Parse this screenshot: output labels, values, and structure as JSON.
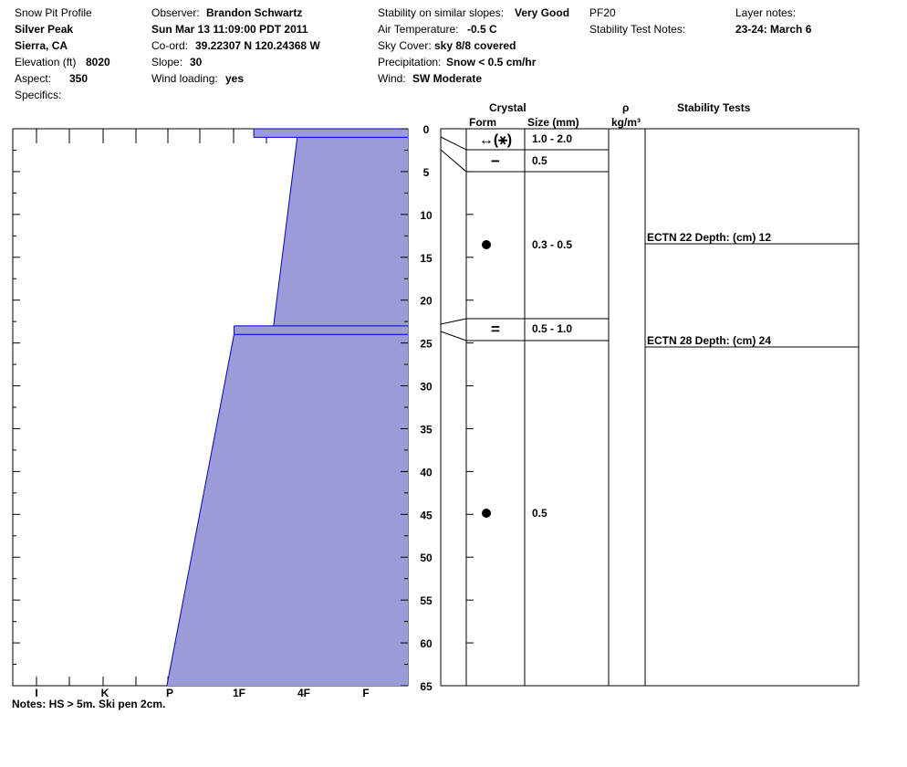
{
  "header": {
    "title": "Snow Pit Profile",
    "location": "Silver Peak",
    "region": "Sierra, CA",
    "elevation_label": "Elevation (ft)",
    "elevation": "8020",
    "aspect_label": "Aspect:",
    "aspect": "350",
    "specifics_label": "Specifics:",
    "observer_label": "Observer:",
    "observer": "Brandon Schwartz",
    "datetime": "Sun Mar 13 11:09:00 PDT 2011",
    "coord_label": "Co-ord:",
    "coord": "39.22307 N 120.24368 W",
    "slope_label": "Slope:",
    "slope": "30",
    "wind_loading_label": "Wind loading:",
    "wind_loading": "yes",
    "stability_label": "Stability on similar slopes:",
    "stability": "Very Good",
    "pf": "PF20",
    "air_temp_label": "Air Temperature:",
    "air_temp": "-0.5 C",
    "sky_label": "Sky Cover:",
    "sky": "sky 8/8 covered",
    "precip_label": "Precipitation:",
    "precip": "Snow < 0.5 cm/hr",
    "wind_label": "Wind:",
    "wind": "SW Moderate",
    "stability_notes_label": "Stability Test Notes:",
    "layer_notes_label": "Layer notes:",
    "layer_notes": "23-24: March 6"
  },
  "columns": {
    "crystal": "Crystal",
    "form": "Form",
    "size": "Size (mm)",
    "rho": "ρ",
    "density_unit": "kg/m³",
    "stability_tests": "Stability Tests"
  },
  "notes": "Notes:  HS > 5m. Ski pen 2cm.",
  "colors": {
    "fill": "#9b9bd8",
    "stroke": "#0000cc"
  },
  "chart_data": {
    "type": "area",
    "depth_ticks": [
      "0",
      "5",
      "10",
      "15",
      "20",
      "25",
      "30",
      "35",
      "40",
      "45",
      "50",
      "55",
      "60",
      "65"
    ],
    "depth_range": [
      0,
      65
    ],
    "hardness_ticks": [
      "I",
      "K",
      "P",
      "1F",
      "4F",
      "F"
    ],
    "hardness_profile": [
      {
        "depth": 0,
        "hardness_x": 0.61
      },
      {
        "depth": 1,
        "hardness_x": 0.72
      },
      {
        "depth": 23,
        "hardness_x": 0.66
      },
      {
        "depth": 24,
        "hardness_x": 0.56
      },
      {
        "depth": 65,
        "hardness_x": 0.39
      }
    ],
    "layers": [
      {
        "top": 0,
        "bottom": 2,
        "form": "↔(⚹)",
        "size": "1.0 - 2.0"
      },
      {
        "top": 2,
        "bottom": 5,
        "form": "−",
        "size": "0.5"
      },
      {
        "top": 5,
        "bottom": 22,
        "form": "●",
        "size": "0.3 - 0.5"
      },
      {
        "top": 22,
        "bottom": 25,
        "form": "=",
        "size": "0.5 - 1.0"
      },
      {
        "top": 25,
        "bottom": 65,
        "form": "●",
        "size": "0.5"
      }
    ],
    "stability_tests": [
      {
        "label": "ECTN 22   Depth: (cm) 12",
        "depth": 12
      },
      {
        "label": "ECTN 28   Depth: (cm) 24",
        "depth": 24
      }
    ]
  }
}
